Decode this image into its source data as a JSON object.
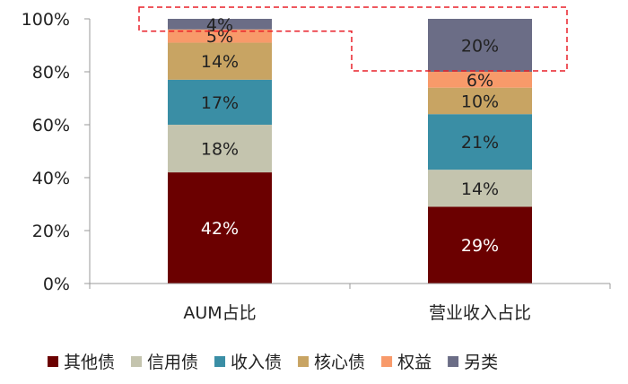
{
  "chart_data": {
    "type": "bar",
    "stacked": true,
    "categories": [
      "AUM占比",
      "营业收入占比"
    ],
    "series": [
      {
        "name": "其他债",
        "color": "#6b0000",
        "values": [
          42,
          29
        ],
        "label_color": "#ffffff"
      },
      {
        "name": "信用债",
        "color": "#c4c4ae",
        "values": [
          18,
          14
        ],
        "label_color": "#222222"
      },
      {
        "name": "收入债",
        "color": "#3a8ea5",
        "values": [
          17,
          21
        ],
        "label_color": "#222222"
      },
      {
        "name": "核心债",
        "color": "#c8a463",
        "values": [
          14,
          10
        ],
        "label_color": "#222222"
      },
      {
        "name": "权益",
        "color": "#f89a6a",
        "values": [
          5,
          6
        ],
        "label_color": "#222222"
      },
      {
        "name": "另类",
        "color": "#6b6d86",
        "values": [
          4,
          20
        ],
        "label_color": "#222222"
      }
    ],
    "data_labels": [
      [
        "42%",
        "18%",
        "17%",
        "14%",
        "5%",
        "4%"
      ],
      [
        "29%",
        "14%",
        "21%",
        "10%",
        "6%",
        "20%"
      ]
    ],
    "yticks": [
      "0%",
      "20%",
      "40%",
      "60%",
      "80%",
      "100%"
    ],
    "ylim": [
      0,
      100
    ],
    "grid": false,
    "legend_position": "bottom",
    "highlight": {
      "style": "red dashed outline",
      "color": "#e8202a",
      "series": "另类"
    }
  }
}
